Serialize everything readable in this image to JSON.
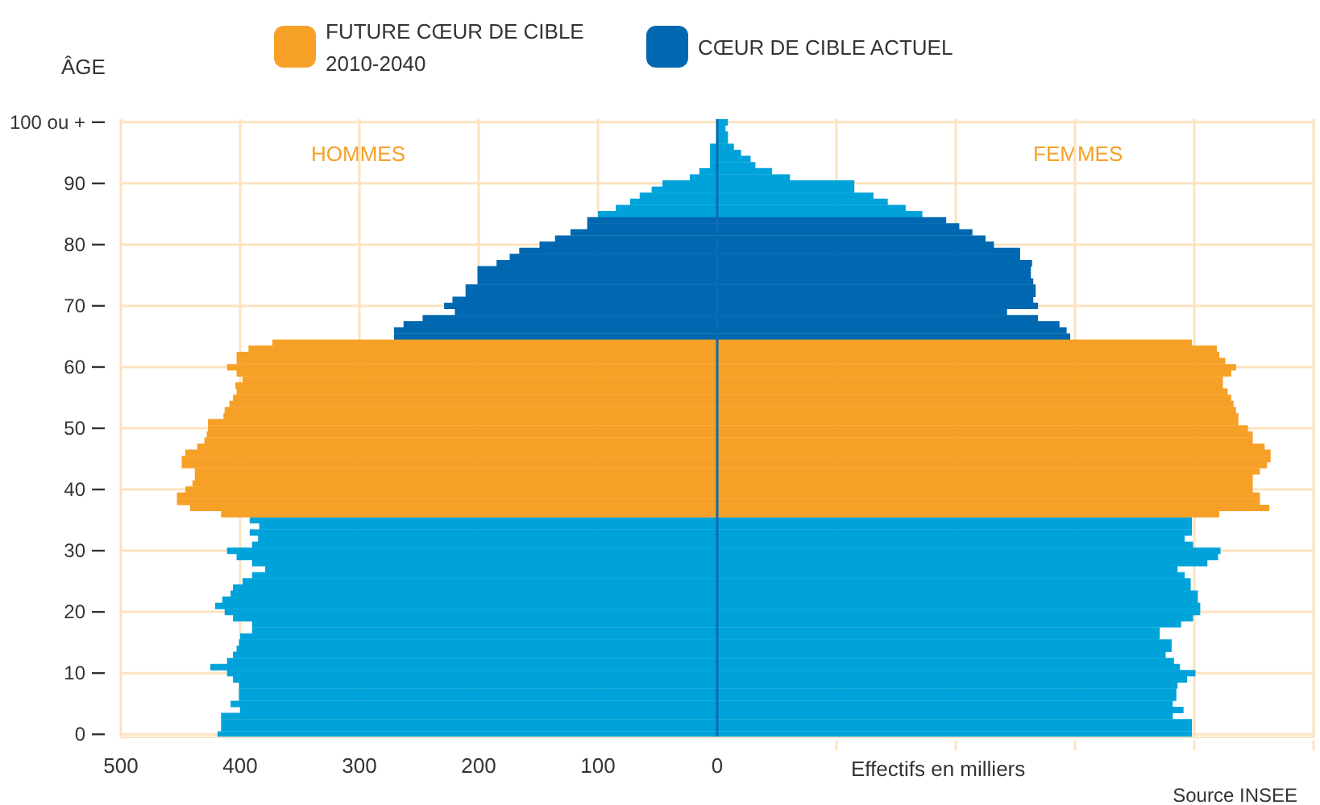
{
  "chart_data": {
    "type": "bar",
    "orientation": "horizontal",
    "stacked": true,
    "ylabel": "ÂGE",
    "xlabel": "Effectifs en milliers",
    "categories": [
      "100 ou +",
      null,
      null,
      null,
      null,
      null,
      null,
      null,
      null,
      null,
      "90",
      null,
      null,
      null,
      null,
      null,
      null,
      null,
      null,
      null,
      "80",
      null,
      null,
      null,
      null,
      null,
      null,
      null,
      null,
      null,
      "70",
      null,
      null,
      null,
      null,
      null,
      null,
      null,
      null,
      null,
      "60",
      null,
      null,
      null,
      null,
      null,
      null,
      null,
      null,
      null,
      "50",
      null,
      null,
      null,
      null,
      null,
      null,
      null,
      null,
      null,
      "40",
      null,
      null,
      null,
      null,
      null,
      null,
      null,
      null,
      null,
      "30",
      null,
      null,
      null,
      null,
      null,
      null,
      null,
      null,
      null,
      "20",
      null,
      null,
      null,
      null,
      null,
      null,
      null,
      null,
      null,
      "10",
      null,
      null,
      null,
      null,
      null,
      null,
      null,
      null,
      null,
      "0"
    ],
    "series": [
      {
        "color": "#00a3d9",
        "values": [
          null,
          null,
          null,
          null,
          -6,
          -6,
          -6,
          -6,
          -15,
          -23,
          -46,
          -55,
          -65,
          -73,
          -85,
          -100,
          null,
          null,
          null,
          null,
          null,
          null,
          null,
          null,
          null,
          null,
          null,
          null,
          null,
          null,
          null,
          null,
          null,
          null,
          null,
          null,
          null,
          null,
          null,
          null,
          null,
          null,
          null,
          null,
          null,
          null,
          null,
          null,
          null,
          null,
          null,
          null,
          null,
          null,
          null,
          null,
          null,
          null,
          null,
          null,
          null,
          null,
          null,
          null,
          null,
          -392,
          -384,
          -392,
          -385,
          -390,
          -411,
          -403,
          -390,
          -379,
          -390,
          -398,
          -406,
          -408,
          -415,
          -421,
          -413,
          -406,
          -390,
          -390,
          -400,
          -401,
          -403,
          -406,
          -411,
          -425,
          -411,
          -406,
          -401,
          -401,
          -401,
          -408,
          -400,
          -416,
          -416,
          -416,
          -419
        ]
      },
      {
        "name": "CŒUR DE CIBLE ACTUEL",
        "color": "#0068b0",
        "values": [
          null,
          null,
          null,
          null,
          null,
          null,
          null,
          null,
          null,
          null,
          null,
          null,
          null,
          null,
          null,
          null,
          -109,
          -109,
          -123,
          -136,
          -149,
          -166,
          -174,
          -185,
          -201,
          -201,
          -201,
          -211,
          -211,
          -222,
          -229,
          -220,
          -247,
          -263,
          -271,
          -271,
          null,
          null,
          null,
          null,
          null,
          null,
          null,
          null,
          null,
          null,
          null,
          null,
          null,
          null,
          null,
          null,
          null,
          null,
          null,
          null,
          null,
          null,
          null,
          null,
          null,
          null,
          null,
          null,
          null,
          null,
          null,
          null,
          null,
          null,
          null,
          null,
          null,
          null,
          null,
          null,
          null,
          null,
          null,
          null,
          null,
          null,
          null,
          null,
          null,
          null,
          null,
          null,
          null,
          null,
          null,
          null,
          null,
          null,
          null,
          null,
          null,
          null,
          null,
          null,
          null
        ]
      },
      {
        "name": "FUTURE CŒUR DE CIBLE 2010-2040",
        "color": "#f7a027",
        "values": [
          null,
          null,
          null,
          null,
          null,
          null,
          null,
          null,
          null,
          null,
          null,
          null,
          null,
          null,
          null,
          null,
          null,
          null,
          null,
          null,
          null,
          null,
          null,
          null,
          null,
          null,
          null,
          null,
          null,
          null,
          null,
          null,
          null,
          null,
          null,
          null,
          -373,
          -393,
          -403,
          -403,
          -411,
          -403,
          -398,
          -404,
          -403,
          -406,
          -409,
          -413,
          -414,
          -427,
          -427,
          -428,
          -430,
          -436,
          -446,
          -449,
          -449,
          -438,
          -438,
          -440,
          -446,
          -453,
          -453,
          -442,
          -416,
          null,
          null,
          null,
          null,
          null,
          null,
          null,
          null,
          null,
          null,
          null,
          null,
          null,
          null,
          null,
          null,
          null,
          null,
          null,
          null,
          null,
          null,
          null,
          null,
          null,
          null,
          null,
          null,
          null,
          null,
          null,
          null,
          null,
          null,
          null,
          null
        ]
      },
      {
        "color": "#00a3d9",
        "values": [
          9,
          7,
          9,
          9,
          14,
          20,
          28,
          32,
          46,
          61,
          115,
          115,
          131,
          143,
          158,
          172,
          null,
          null,
          null,
          null,
          null,
          null,
          null,
          null,
          null,
          null,
          null,
          null,
          null,
          null,
          null,
          null,
          null,
          null,
          null,
          null,
          null,
          null,
          null,
          null,
          null,
          null,
          null,
          null,
          null,
          null,
          null,
          null,
          null,
          null,
          null,
          null,
          null,
          null,
          null,
          null,
          null,
          null,
          null,
          null,
          null,
          null,
          null,
          null,
          null,
          398,
          398,
          398,
          392,
          399,
          422,
          420,
          411,
          386,
          392,
          397,
          397,
          403,
          403,
          405,
          405,
          399,
          389,
          371,
          371,
          381,
          381,
          376,
          383,
          388,
          401,
          394,
          386,
          385,
          385,
          382,
          391,
          382,
          398,
          398,
          398
        ]
      },
      {
        "color": "#0068b0",
        "values": [
          null,
          null,
          null,
          null,
          null,
          null,
          null,
          null,
          null,
          null,
          null,
          null,
          null,
          null,
          null,
          null,
          192,
          203,
          214,
          225,
          232,
          254,
          254,
          264,
          263,
          263,
          265,
          267,
          267,
          265,
          269,
          243,
          269,
          287,
          293,
          296,
          null,
          null,
          null,
          null,
          null,
          null,
          null,
          null,
          null,
          null,
          null,
          null,
          null,
          null,
          null,
          null,
          null,
          null,
          null,
          null,
          null,
          null,
          null,
          null,
          null,
          null,
          null,
          null,
          null,
          null,
          null,
          null,
          null,
          null,
          null,
          null,
          null,
          null,
          null,
          null,
          null,
          null,
          null,
          null,
          null,
          null,
          null,
          null,
          null,
          null,
          null,
          null,
          null,
          null,
          null,
          null,
          null,
          null,
          null,
          null,
          null,
          null,
          null,
          null,
          null
        ]
      },
      {
        "color": "#f7a027",
        "values": [
          null,
          null,
          null,
          null,
          null,
          null,
          null,
          null,
          null,
          null,
          null,
          null,
          null,
          null,
          null,
          null,
          null,
          null,
          null,
          null,
          null,
          null,
          null,
          null,
          null,
          null,
          null,
          null,
          null,
          null,
          null,
          null,
          null,
          null,
          null,
          null,
          398,
          419,
          421,
          426,
          435,
          431,
          424,
          424,
          428,
          431,
          433,
          435,
          437,
          437,
          445,
          449,
          449,
          459,
          464,
          464,
          461,
          455,
          449,
          449,
          449,
          455,
          455,
          463,
          421,
          null,
          null,
          null,
          null,
          null,
          null,
          null,
          null,
          null,
          null,
          null,
          null,
          null,
          null,
          null,
          null,
          null,
          null,
          null,
          null,
          null,
          null,
          null,
          null,
          null,
          null,
          null,
          null,
          null,
          null,
          null,
          null,
          null,
          null,
          null,
          null
        ]
      }
    ],
    "xlim": [
      -500,
      500
    ],
    "xticks": [
      {
        "value": -500,
        "label": "500"
      },
      {
        "value": -400,
        "label": "400"
      },
      {
        "value": -300,
        "label": "300"
      },
      {
        "value": -200,
        "label": "200"
      },
      {
        "value": -100,
        "label": "100"
      },
      0,
      {
        "value": 100,
        "label": null
      },
      {
        "value": 200,
        "label": null
      },
      {
        "value": 300,
        "label": null
      },
      {
        "value": 400,
        "label": null
      },
      {
        "value": 500,
        "label": null
      }
    ],
    "ref_lines": [
      {
        "axis": "x",
        "value": 0,
        "color": "#0a6ab3"
      }
    ],
    "grid": true,
    "legend": "top",
    "annotations": [
      "HOMMES",
      "FEMMES",
      "Source INSEE"
    ]
  }
}
